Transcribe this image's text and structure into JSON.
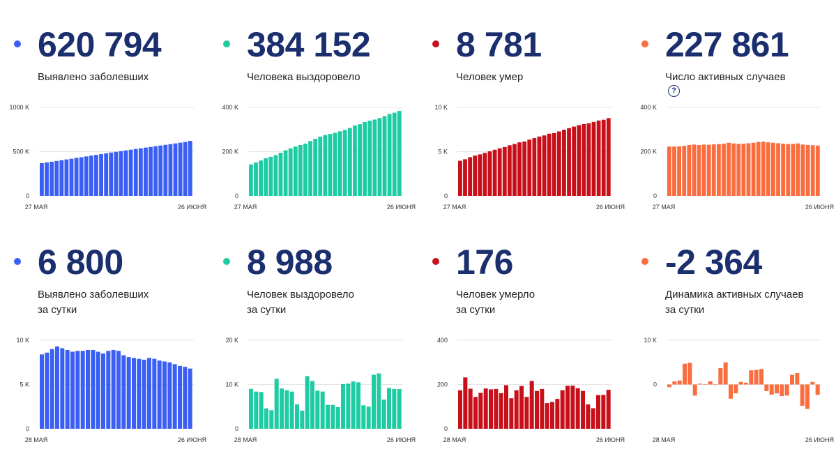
{
  "colors": {
    "blue": "#3b5ff2",
    "green": "#1fcba2",
    "red": "#c8101a",
    "orange": "#fa6d3e",
    "dark": "#1b2f6e"
  },
  "panels": [
    {
      "value": "620 794",
      "caption1": "Выявлено заболевших",
      "caption2": "",
      "help": false,
      "color": "#3b5ff2"
    },
    {
      "value": "384 152",
      "caption1": "Человека выздоровело",
      "caption2": "",
      "help": false,
      "color": "#1fcba2"
    },
    {
      "value": "8 781",
      "caption1": "Человек умер",
      "caption2": "",
      "help": false,
      "color": "#c8101a"
    },
    {
      "value": "227 861",
      "caption1": "Число активных случаев",
      "caption2": "",
      "help": true,
      "help_glyph": "?",
      "color": "#fa6d3e"
    },
    {
      "value": "6 800",
      "caption1": "Выявлено заболевших",
      "caption2": "за сутки",
      "help": false,
      "color": "#3b5ff2"
    },
    {
      "value": "8 988",
      "caption1": "Человек выздоровело",
      "caption2": "за сутки",
      "help": false,
      "color": "#1fcba2"
    },
    {
      "value": "176",
      "caption1": "Человек умерло",
      "caption2": "за сутки",
      "help": false,
      "color": "#c8101a"
    },
    {
      "value": "-2 364",
      "caption1": "Динамика активных случаев",
      "caption2": "за сутки",
      "help": false,
      "color": "#fa6d3e"
    }
  ],
  "chart_data": [
    {
      "type": "bar",
      "name": "cumulative-cases",
      "color": "#3b5ff2",
      "x_labels": [
        "27 МАЯ",
        "26 ИЮНЯ"
      ],
      "y_ticks": [
        0,
        500000,
        1000000
      ],
      "y_tick_labels": [
        "0",
        "500 K",
        "1000 K"
      ],
      "ylim": [
        0,
        1000000
      ],
      "values": [
        370000,
        378000,
        386000,
        395000,
        403000,
        412000,
        420000,
        429000,
        437000,
        446000,
        455000,
        463000,
        472000,
        481000,
        490000,
        498000,
        506000,
        514000,
        522000,
        530000,
        538000,
        546000,
        553000,
        561000,
        569000,
        577000,
        585000,
        593000,
        601000,
        609000,
        620794
      ]
    },
    {
      "type": "bar",
      "name": "cumulative-recovered",
      "color": "#1fcba2",
      "x_labels": [
        "27 МАЯ",
        "26 ИЮНЯ"
      ],
      "y_ticks": [
        0,
        200000,
        400000
      ],
      "y_tick_labels": [
        "0",
        "200 K",
        "400 K"
      ],
      "ylim": [
        0,
        400000
      ],
      "values": [
        142000,
        151000,
        160000,
        170000,
        177000,
        184000,
        195000,
        206000,
        215000,
        223000,
        230000,
        236000,
        248000,
        258000,
        268000,
        275000,
        280000,
        285000,
        292000,
        298000,
        307000,
        318000,
        324000,
        334000,
        340000,
        345000,
        352000,
        360000,
        370000,
        376000,
        384152
      ]
    },
    {
      "type": "bar",
      "name": "cumulative-deaths",
      "color": "#c8101a",
      "x_labels": [
        "27 МАЯ",
        "26 ИЮНЯ"
      ],
      "y_ticks": [
        0,
        5000,
        10000
      ],
      "y_tick_labels": [
        "0",
        "5 K",
        "10 K"
      ],
      "ylim": [
        0,
        10000
      ],
      "values": [
        3968,
        4142,
        4374,
        4555,
        4693,
        4855,
        5037,
        5215,
        5376,
        5520,
        5717,
        5859,
        6052,
        6148,
        6358,
        6532,
        6705,
        6829,
        7026,
        7091,
        7284,
        7478,
        7650,
        7831,
        7992,
        8111,
        8206,
        8359,
        8513,
        8605,
        8781
      ]
    },
    {
      "type": "bar",
      "name": "active-cases",
      "color": "#fa6d3e",
      "x_labels": [
        "27 МАЯ",
        "26 ИЮНЯ"
      ],
      "y_ticks": [
        0,
        200000,
        400000
      ],
      "y_tick_labels": [
        "0",
        "200 K",
        "400 K"
      ],
      "ylim": [
        0,
        400000
      ],
      "values": [
        223000,
        223000,
        224000,
        226000,
        230000,
        232000,
        230000,
        232000,
        231000,
        233000,
        234000,
        236000,
        240000,
        237000,
        235000,
        236000,
        238000,
        240000,
        244000,
        245000,
        242000,
        240000,
        238000,
        236000,
        234000,
        235000,
        237000,
        232000,
        230000,
        229000,
        227861
      ]
    },
    {
      "type": "bar",
      "name": "daily-cases",
      "color": "#3b5ff2",
      "x_labels": [
        "28 МАЯ",
        "26 ИЮНЯ"
      ],
      "y_ticks": [
        0,
        5000,
        10000
      ],
      "y_tick_labels": [
        "0",
        "5 K",
        "10 K"
      ],
      "ylim": [
        0,
        10000
      ],
      "values": [
        8400,
        8600,
        9000,
        9300,
        9100,
        8900,
        8700,
        8800,
        8800,
        8900,
        8900,
        8700,
        8500,
        8800,
        8900,
        8800,
        8300,
        8100,
        8000,
        7900,
        7800,
        8000,
        7900,
        7700,
        7600,
        7500,
        7300,
        7100,
        7000,
        6800
      ]
    },
    {
      "type": "bar",
      "name": "daily-recovered",
      "color": "#1fcba2",
      "x_labels": [
        "28 МАЯ",
        "26 ИЮНЯ"
      ],
      "y_ticks": [
        0,
        10000,
        20000
      ],
      "y_tick_labels": [
        "0",
        "10 K",
        "20 K"
      ],
      "ylim": [
        0,
        20000
      ],
      "values": [
        9000,
        8400,
        8300,
        4600,
        4200,
        11300,
        9100,
        8700,
        8400,
        5500,
        4100,
        11900,
        10800,
        8600,
        8400,
        5400,
        5400,
        4900,
        10100,
        10200,
        10700,
        10500,
        5300,
        5000,
        12200,
        12500,
        6600,
        9200,
        8988,
        8988
      ]
    },
    {
      "type": "bar",
      "name": "daily-deaths",
      "color": "#c8101a",
      "x_labels": [
        "28 МАЯ",
        "26 ИЮНЯ"
      ],
      "y_ticks": [
        0,
        200,
        400
      ],
      "y_tick_labels": [
        "0",
        "200",
        "400"
      ],
      "ylim": [
        0,
        400
      ],
      "values": [
        174,
        232,
        181,
        144,
        162,
        182,
        178,
        180,
        161,
        197,
        138,
        174,
        193,
        144,
        216,
        171,
        180,
        116,
        121,
        135,
        174,
        194,
        195,
        183,
        171,
        110,
        93,
        152,
        153,
        176
      ]
    },
    {
      "type": "bar",
      "name": "active-change",
      "color": "#fa6d3e",
      "x_labels": [
        "28 МАЯ",
        "26 ИЮНЯ"
      ],
      "y_ticks": [
        0,
        10000
      ],
      "y_tick_labels": [
        "0",
        "10 K"
      ],
      "ylim": [
        -10000,
        10000
      ],
      "values": [
        -600,
        700,
        900,
        4700,
        4900,
        -2500,
        200,
        0,
        700,
        0,
        3700,
        5000,
        -3200,
        -2000,
        600,
        400,
        3200,
        3300,
        3500,
        -1500,
        -2300,
        -2000,
        -2600,
        -2500,
        2200,
        2600,
        -4800,
        -5500,
        600,
        -2364
      ]
    }
  ]
}
